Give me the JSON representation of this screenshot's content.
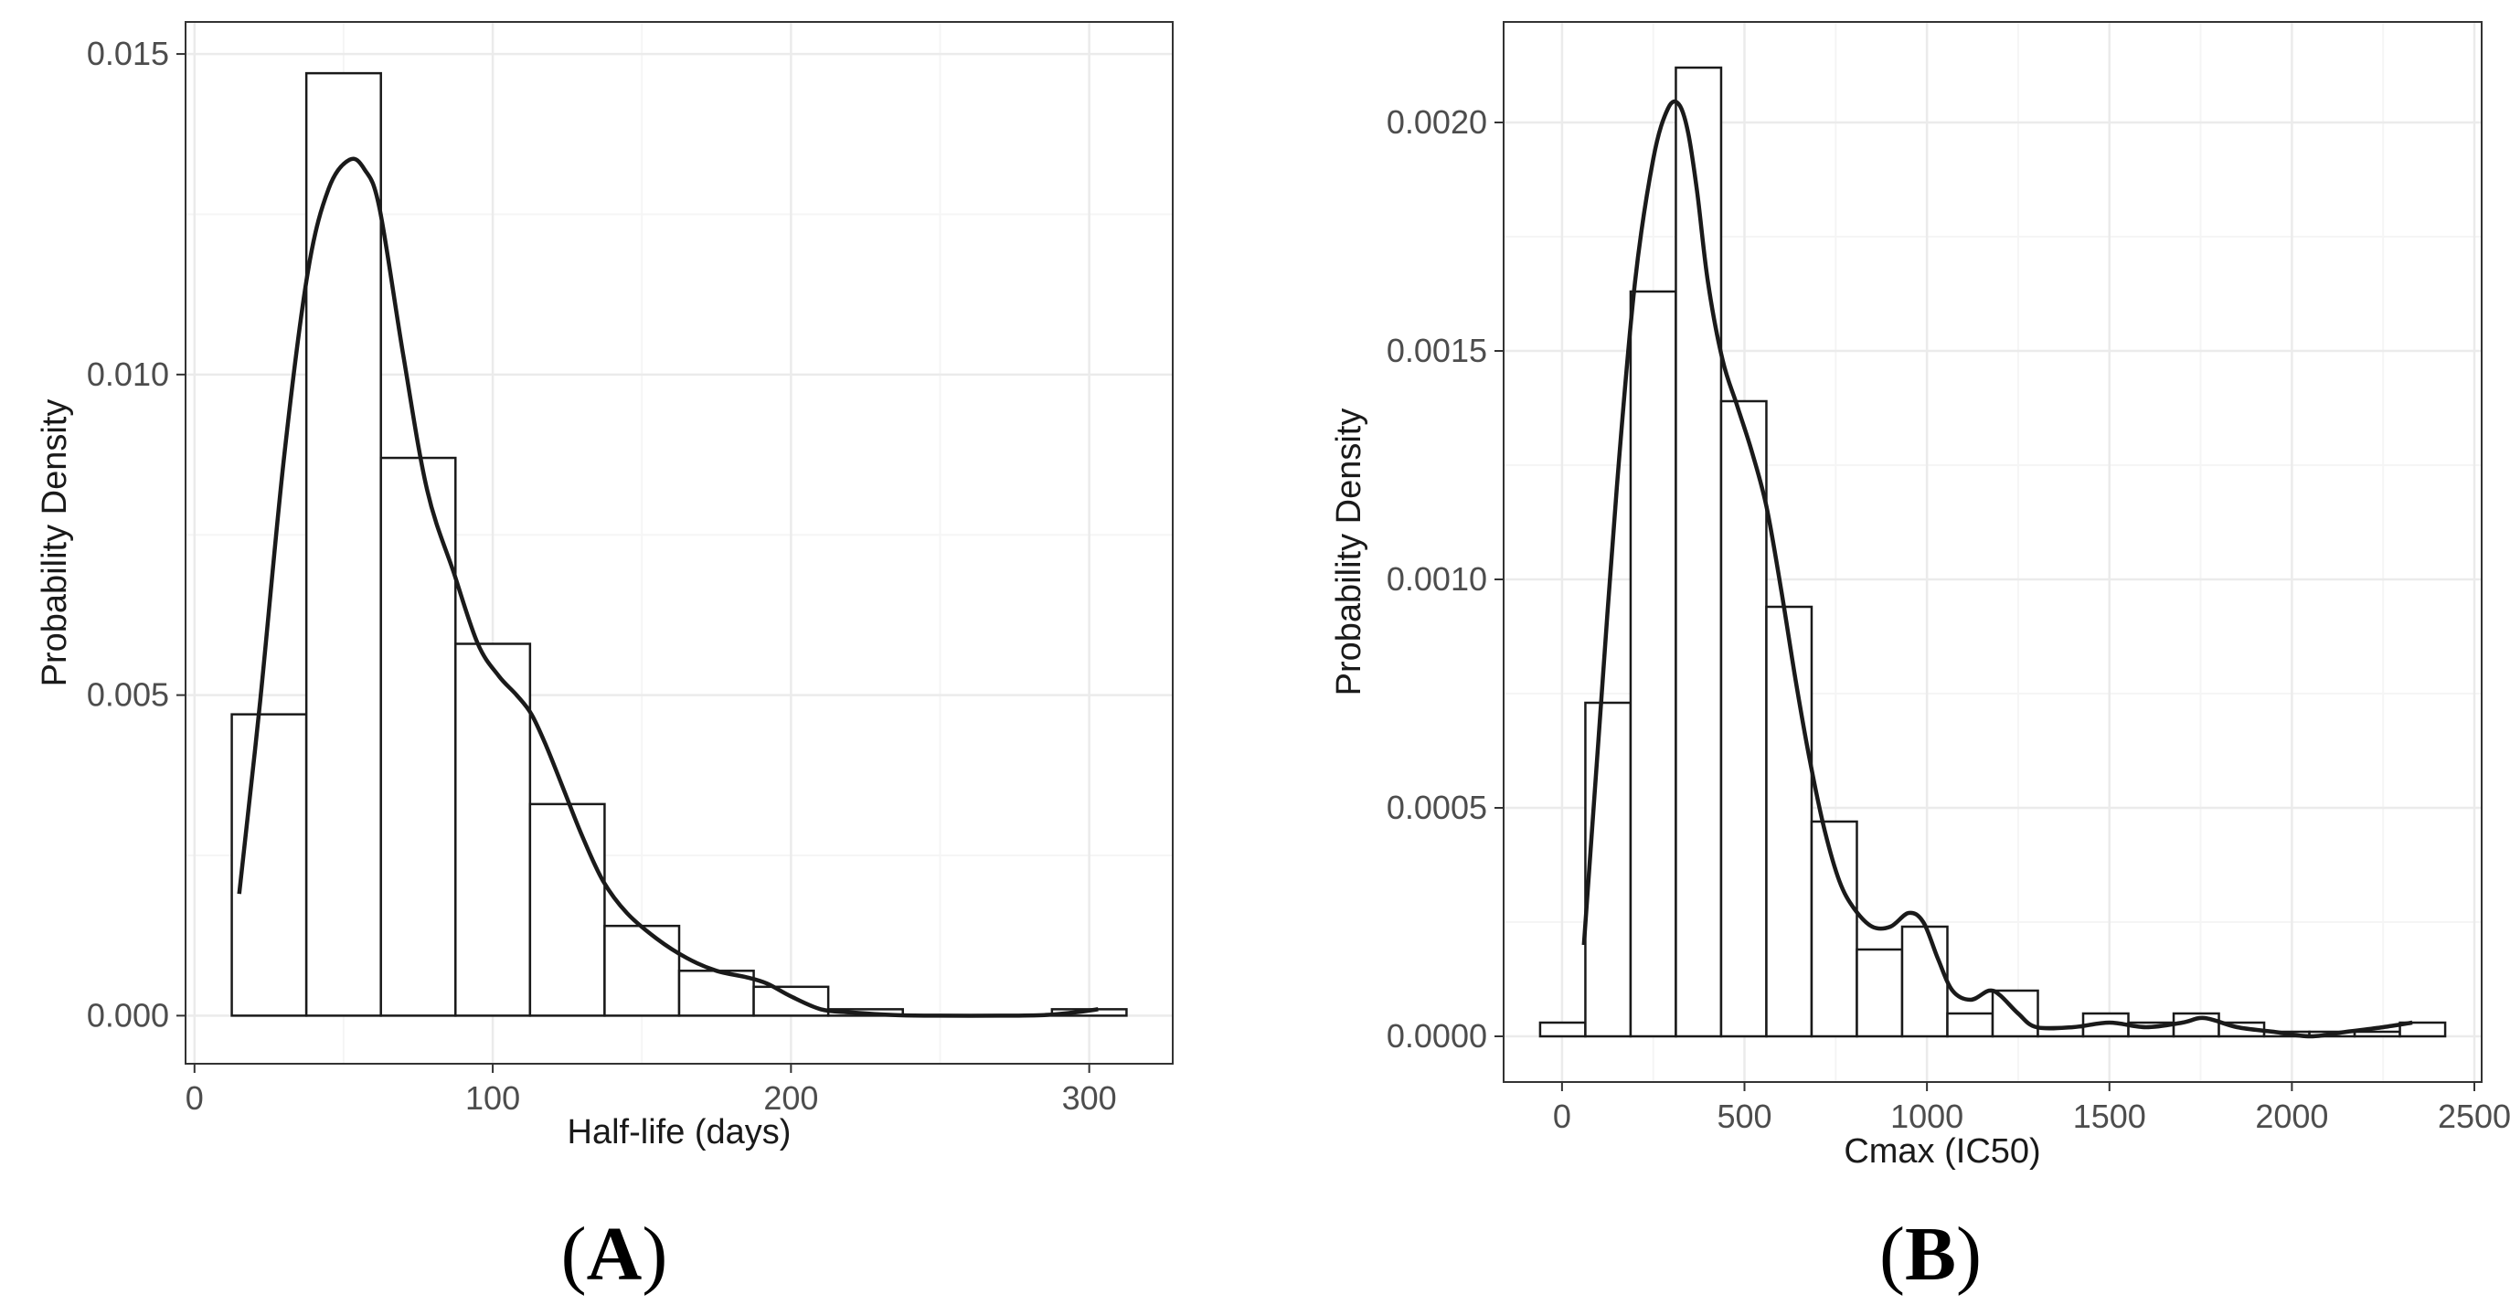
{
  "chart_data": [
    {
      "type": "histogram",
      "panel": "A",
      "xlabel": "Half-life (days)",
      "ylabel": "Probability Density",
      "xlim": [
        -3,
        328
      ],
      "ylim": [
        -0.00075,
        0.0155
      ],
      "x_ticks": [
        0,
        100,
        200,
        300
      ],
      "x_tick_labels": [
        "0",
        "100",
        "200",
        "300"
      ],
      "y_ticks": [
        0,
        0.005,
        0.01,
        0.015
      ],
      "y_tick_labels": [
        "0.000",
        "0.005",
        "0.010",
        "0.015"
      ],
      "x_minor": [
        50,
        150,
        250
      ],
      "y_minor": [
        0.0025,
        0.0075,
        0.0125
      ],
      "grid": true,
      "bins": [
        {
          "x0": 12.5,
          "x1": 37.5,
          "density": 0.0047
        },
        {
          "x0": 37.5,
          "x1": 62.5,
          "density": 0.0147
        },
        {
          "x0": 62.5,
          "x1": 87.5,
          "density": 0.0087
        },
        {
          "x0": 87.5,
          "x1": 112.5,
          "density": 0.0058
        },
        {
          "x0": 112.5,
          "x1": 137.5,
          "density": 0.0033
        },
        {
          "x0": 137.5,
          "x1": 162.5,
          "density": 0.0014
        },
        {
          "x0": 162.5,
          "x1": 187.5,
          "density": 0.0007
        },
        {
          "x0": 187.5,
          "x1": 212.5,
          "density": 0.00045
        },
        {
          "x0": 212.5,
          "x1": 237.5,
          "density": 0.0001
        },
        {
          "x0": 287.5,
          "x1": 312.5,
          "density": 0.0001
        }
      ],
      "density_curve": {
        "x": [
          15,
          22,
          30,
          38,
          45,
          52,
          57,
          62,
          70,
          78,
          87,
          95,
          102,
          108,
          113,
          118,
          124,
          130,
          137,
          145,
          155,
          165,
          175,
          185,
          192,
          200,
          210,
          220,
          235,
          250,
          270,
          285,
          295,
          303
        ],
        "y": [
          0.0019,
          0.0049,
          0.0087,
          0.0116,
          0.0129,
          0.01335,
          0.0132,
          0.0126,
          0.0103,
          0.0082,
          0.0069,
          0.0058,
          0.0053,
          0.005,
          0.0047,
          0.0042,
          0.0035,
          0.0028,
          0.0021,
          0.0016,
          0.0012,
          0.0009,
          0.0007,
          0.0006,
          0.0005,
          0.0003,
          0.0001,
          5e-05,
          1e-05,
          0.0,
          0.0,
          1e-05,
          5e-05,
          0.0001
        ]
      }
    },
    {
      "type": "histogram",
      "panel": "B",
      "xlabel": "Cmax (IC50)",
      "ylabel": "Probability Density",
      "xlim": [
        -160,
        2520
      ],
      "ylim": [
        -0.0001,
        0.00222
      ],
      "x_ticks": [
        0,
        500,
        1000,
        1500,
        2000,
        2500
      ],
      "x_tick_labels": [
        "0",
        "500",
        "1000",
        "1500",
        "2000",
        "2500"
      ],
      "y_ticks": [
        0,
        0.0005,
        0.001,
        0.0015,
        0.002
      ],
      "y_tick_labels": [
        "0.0000",
        "0.0005",
        "0.0010",
        "0.0015",
        "0.0020"
      ],
      "x_minor": [
        250,
        750,
        1250,
        1750,
        2250
      ],
      "y_minor": [
        0.00025,
        0.00075,
        0.00125,
        0.00175
      ],
      "grid": true,
      "bins": [
        {
          "x0": -60,
          "x1": 64,
          "density": 3e-05
        },
        {
          "x0": 64,
          "x1": 188,
          "density": 0.00073
        },
        {
          "x0": 188,
          "x1": 312,
          "density": 0.00163
        },
        {
          "x0": 312,
          "x1": 436,
          "density": 0.00212
        },
        {
          "x0": 436,
          "x1": 560,
          "density": 0.00139
        },
        {
          "x0": 560,
          "x1": 684,
          "density": 0.00094
        },
        {
          "x0": 684,
          "x1": 808,
          "density": 0.00047
        },
        {
          "x0": 808,
          "x1": 932,
          "density": 0.00019
        },
        {
          "x0": 932,
          "x1": 1056,
          "density": 0.00024
        },
        {
          "x0": 1056,
          "x1": 1180,
          "density": 5e-05
        },
        {
          "x0": 1180,
          "x1": 1304,
          "density": 0.0001
        },
        {
          "x0": 1304,
          "x1": 1428,
          "density": 2e-05
        },
        {
          "x0": 1428,
          "x1": 1552,
          "density": 5e-05
        },
        {
          "x0": 1552,
          "x1": 1676,
          "density": 3e-05
        },
        {
          "x0": 1676,
          "x1": 1800,
          "density": 5e-05
        },
        {
          "x0": 1800,
          "x1": 1924,
          "density": 3e-05
        },
        {
          "x0": 1924,
          "x1": 2048,
          "density": 1e-05
        },
        {
          "x0": 2048,
          "x1": 2172,
          "density": 1e-05
        },
        {
          "x0": 2172,
          "x1": 2296,
          "density": 1e-05
        },
        {
          "x0": 2296,
          "x1": 2420,
          "density": 3e-05
        }
      ],
      "density_curve": {
        "x": [
          60,
          100,
          150,
          200,
          250,
          290,
          320,
          345,
          370,
          400,
          440,
          480,
          520,
          560,
          600,
          640,
          680,
          720,
          760,
          800,
          850,
          900,
          950,
          990,
          1030,
          1070,
          1120,
          1170,
          1200,
          1250,
          1300,
          1400,
          1500,
          1600,
          1700,
          1760,
          1850,
          1950,
          2050,
          2150,
          2250,
          2330
        ],
        "y": [
          0.0002,
          0.00065,
          0.0012,
          0.00165,
          0.00192,
          0.00203,
          0.00204,
          0.00198,
          0.00185,
          0.00165,
          0.00148,
          0.00138,
          0.00128,
          0.00116,
          0.00098,
          0.00078,
          0.0006,
          0.00045,
          0.00034,
          0.00028,
          0.00024,
          0.00024,
          0.00027,
          0.00025,
          0.00017,
          0.0001,
          8e-05,
          0.0001,
          9e-05,
          5e-05,
          2e-05,
          2e-05,
          3e-05,
          2e-05,
          3e-05,
          4e-05,
          2e-05,
          1e-05,
          0.0,
          1e-05,
          2e-05,
          3e-05
        ]
      }
    }
  ],
  "panel_labels": {
    "a": {
      "open": "(",
      "letter": "A",
      "close": ")"
    },
    "b": {
      "open": "(",
      "letter": "B",
      "close": ")"
    }
  },
  "colors": {
    "bar_fill": "#ffffff",
    "bar_stroke": "#1a1a1a",
    "curve": "#1a1a1a",
    "grid_major": "#ebebeb",
    "grid_minor": "#f5f5f5",
    "panel_border": "#333333",
    "tick": "#333333"
  }
}
